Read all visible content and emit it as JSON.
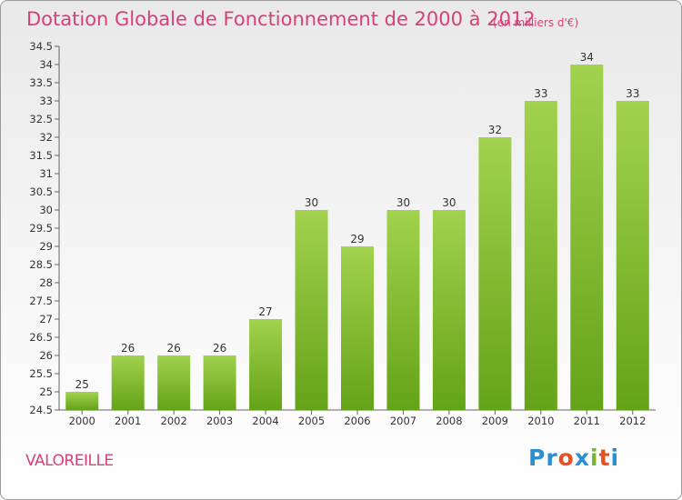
{
  "header": {
    "title": "Dotation Globale de Fonctionnement de 2000 à 2012",
    "unit": "(en milliers d'€)"
  },
  "footer": {
    "commune": "VALOREILLE",
    "logo_letters": [
      "P",
      "r",
      "o",
      "x",
      "i",
      "t",
      "i"
    ],
    "logo_colors": [
      "#2a8fd0",
      "#2a8fd0",
      "#e8511f",
      "#2a8fd0",
      "#7bb32e",
      "#e8511f",
      "#2a8fd0"
    ]
  },
  "chart_data": {
    "type": "bar",
    "title": "Dotation Globale de Fonctionnement de 2000 à 2012",
    "categories": [
      "2000",
      "2001",
      "2002",
      "2003",
      "2004",
      "2005",
      "2006",
      "2007",
      "2008",
      "2009",
      "2010",
      "2011",
      "2012"
    ],
    "values": [
      25,
      26,
      26,
      26,
      27,
      30,
      29,
      30,
      30,
      32,
      33,
      34,
      33
    ],
    "ylim": [
      24.5,
      34.5
    ],
    "yticks": [
      "24.5",
      "25",
      "25.5",
      "26",
      "26.5",
      "27",
      "27.5",
      "28",
      "28.5",
      "29",
      "29.5",
      "30",
      "30.5",
      "31",
      "31.5",
      "32",
      "32.5",
      "33",
      "33.5",
      "34",
      "34.5"
    ],
    "bar_color_top": "#a2d24e",
    "bar_color_bottom": "#64a318",
    "xlabel": "",
    "ylabel": "",
    "grid": false
  }
}
